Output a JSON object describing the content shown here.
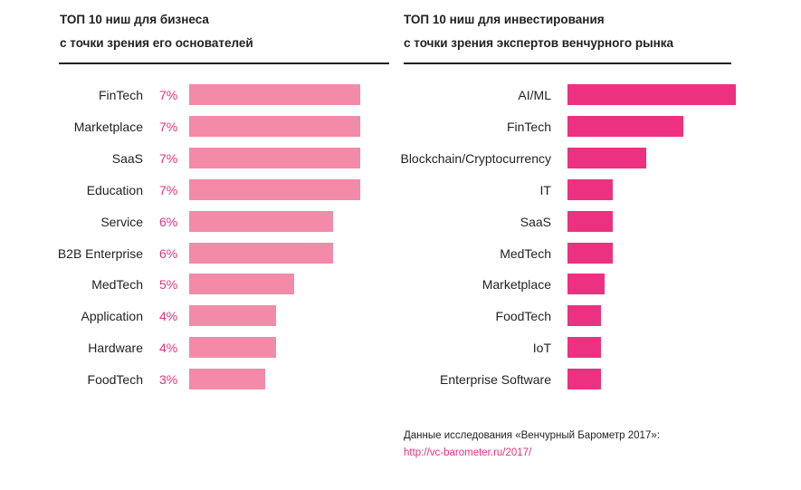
{
  "chart_data": [
    {
      "type": "bar",
      "orientation": "horizontal",
      "title": "ТОП 10 ниш для бизнеса с точки зрения его основателей",
      "title_lines": [
        "ТОП 10 ниш для бизнеса",
        "с точки зрения его основателей"
      ],
      "categories": [
        "FinTech",
        "Marketplace",
        "SaaS",
        "Education",
        "Service",
        "B2B Enterprise",
        "MedTech",
        "Application",
        "Hardware",
        "FoodTech"
      ],
      "values": [
        7,
        7,
        7,
        7,
        6,
        6,
        5,
        4,
        4,
        3
      ],
      "value_labels": [
        "7%",
        "7%",
        "7%",
        "7%",
        "6%",
        "6%",
        "5%",
        "4%",
        "4%",
        "3%"
      ],
      "unit": "%",
      "xlim": [
        0,
        7
      ],
      "grid": false,
      "color": "#f28aa8",
      "label_color": "#e8307f"
    },
    {
      "type": "bar",
      "orientation": "horizontal",
      "title": "ТОП 10 ниш для инвестирования с точки зрения экспертов венчурного рынка",
      "title_lines": [
        "ТОП 10 ниш для инвестирования",
        "с точки зрения экспертов венчурного рынка"
      ],
      "categories": [
        "AI/ML",
        "FinTech",
        "Blockchain/Cryptocurrency",
        "IT",
        "SaaS",
        "MedTech",
        "Marketplace",
        "FoodTech",
        "IoT",
        "Enterprise Software"
      ],
      "values": [
        100,
        69,
        47,
        27,
        27,
        27,
        22,
        20,
        20,
        20
      ],
      "value_units": "relative (no values shown; estimated from bar length, AI/ML = 100)",
      "xlim": [
        0,
        100
      ],
      "grid": false,
      "color": "#ec3180"
    }
  ],
  "source": {
    "text": "Данные исследования «Венчурный Барометр 2017»:",
    "link": "http://vc-barometer.ru/2017/"
  }
}
